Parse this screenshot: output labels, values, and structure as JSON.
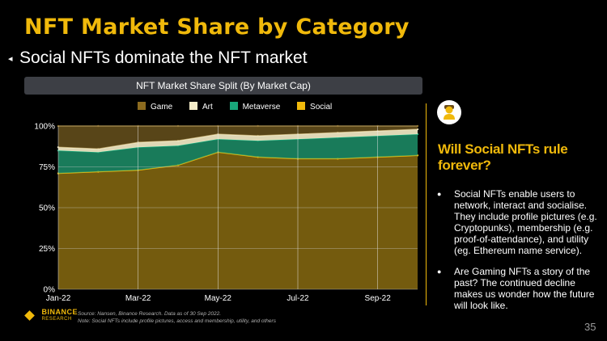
{
  "slide": {
    "title": "NFT Market Share by Category",
    "subtitle_bullet": "◂",
    "subtitle": "Social NFTs dominate the NFT market",
    "chart_header": "NFT Market Share Split (By Market Cap)",
    "source_line1": "Source: Nansen, Binance Research. Data as of 30 Sep 2022.",
    "source_line2": "Note: Social NFTs include profile pictures, access and membership, utility, and others",
    "logo_name": "BINANCE",
    "logo_sub": "RESEARCH",
    "page_number": "35"
  },
  "sidebar": {
    "icon": "person-icon",
    "question": "Will Social NFTs rule forever?",
    "bullets": [
      "Social NFTs enable users to network, interact and socialise. They include profile pictures (e.g. Cryptopunks), membership (e.g. proof-of-attendance), and utility (eg. Ethereum name service).",
      "Are Gaming NFTs a story of the past? The continued decline makes us wonder how the future will look like."
    ]
  },
  "colors": {
    "game": "#8c6b1f",
    "art": "#f5ecc8",
    "metaverse": "#19a67a",
    "social": "#f0b90b",
    "accent": "#f0b90b"
  },
  "chart_data": {
    "type": "area",
    "stacked": true,
    "title": "NFT Market Share Split (By Market Cap)",
    "xlabel": "",
    "ylabel": "",
    "ylim": [
      0,
      100
    ],
    "yticks": [
      "0%",
      "25%",
      "50%",
      "75%",
      "100%"
    ],
    "xticks": [
      "Jan-22",
      "Mar-22",
      "May-22",
      "Jul-22",
      "Sep-22"
    ],
    "legend": [
      "Game",
      "Art",
      "Metaverse",
      "Social"
    ],
    "legend_position": "top",
    "x": [
      "Jan-22",
      "Feb-22",
      "Mar-22",
      "Apr-22",
      "May-22",
      "Jun-22",
      "Jul-22",
      "Aug-22",
      "Sep-22",
      "Oct-22"
    ],
    "series": [
      {
        "name": "Social",
        "values": [
          71,
          72,
          73,
          76,
          84,
          81,
          80,
          80,
          81,
          82
        ]
      },
      {
        "name": "Metaverse",
        "values": [
          14,
          12,
          14,
          12,
          8,
          10,
          12,
          13,
          13,
          13
        ]
      },
      {
        "name": "Art",
        "values": [
          2,
          2,
          3,
          3,
          3,
          3,
          3,
          3,
          3,
          3
        ]
      },
      {
        "name": "Game",
        "values": [
          13,
          14,
          10,
          9,
          5,
          6,
          5,
          4,
          3,
          2
        ]
      }
    ]
  }
}
